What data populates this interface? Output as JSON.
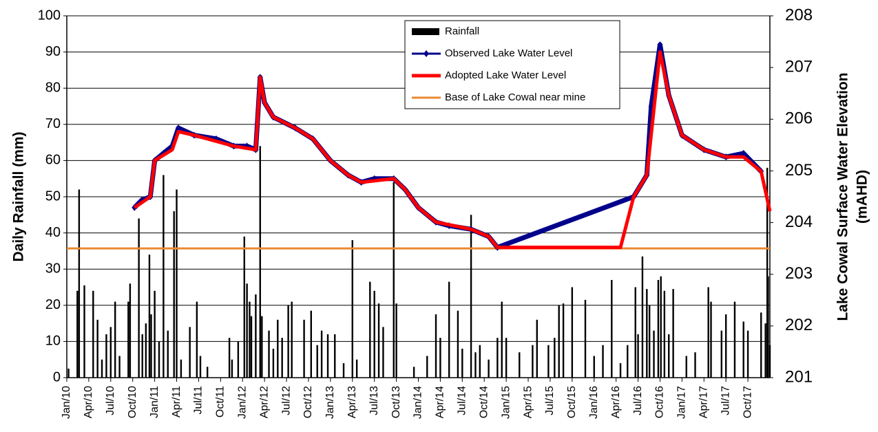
{
  "chart_data": {
    "type": "bar_line",
    "y_label": "Daily Rainfall (mm)",
    "y2_label": [
      "Lake Cowal Surface Water Elevation",
      "(mAHD)"
    ],
    "xlim": [
      2010,
      2018
    ],
    "xticks": [
      {
        "value": 2010,
        "label": "Jan/10"
      },
      {
        "value": 2010.25,
        "label": "Apr/10"
      },
      {
        "value": 2010.5,
        "label": "Jul/10"
      },
      {
        "value": 2010.75,
        "label": "Oct/10"
      },
      {
        "value": 2011,
        "label": "Jan/11"
      },
      {
        "value": 2011.25,
        "label": "Apr/11"
      },
      {
        "value": 2011.5,
        "label": "Jul/11"
      },
      {
        "value": 2011.75,
        "label": "Oct/11"
      },
      {
        "value": 2012,
        "label": "Jan/12"
      },
      {
        "value": 2012.25,
        "label": "Apr/12"
      },
      {
        "value": 2012.5,
        "label": "Jul/12"
      },
      {
        "value": 2012.75,
        "label": "Oct/12"
      },
      {
        "value": 2013,
        "label": "Jan/13"
      },
      {
        "value": 2013.25,
        "label": "Apr/13"
      },
      {
        "value": 2013.5,
        "label": "Jul/13"
      },
      {
        "value": 2013.75,
        "label": "Oct/13"
      },
      {
        "value": 2014,
        "label": "Jan/14"
      },
      {
        "value": 2014.25,
        "label": "Apr/14"
      },
      {
        "value": 2014.5,
        "label": "Jul/14"
      },
      {
        "value": 2014.75,
        "label": "Oct/14"
      },
      {
        "value": 2015,
        "label": "Jan/15"
      },
      {
        "value": 2015.25,
        "label": "Apr/15"
      },
      {
        "value": 2015.5,
        "label": "Jul/15"
      },
      {
        "value": 2015.75,
        "label": "Oct/15"
      },
      {
        "value": 2016,
        "label": "Jan/16"
      },
      {
        "value": 2016.25,
        "label": "Apr/16"
      },
      {
        "value": 2016.5,
        "label": "Jul/16"
      },
      {
        "value": 2016.75,
        "label": "Oct/16"
      },
      {
        "value": 2017,
        "label": "Jan/17"
      },
      {
        "value": 2017.25,
        "label": "Apr/17"
      },
      {
        "value": 2017.5,
        "label": "Jul/17"
      },
      {
        "value": 2017.75,
        "label": "Oct/17"
      }
    ],
    "ylim": [
      0,
      100
    ],
    "yticks": [
      0,
      10,
      20,
      30,
      40,
      50,
      60,
      70,
      80,
      90,
      100
    ],
    "y2lim": [
      201,
      208
    ],
    "y2ticks": [
      201,
      202,
      203,
      204,
      205,
      206,
      207,
      208
    ],
    "grid": true,
    "legend": "top-center",
    "series": [
      {
        "name": "Rainfall",
        "type": "bar",
        "color": "#000000",
        "x": [
          2010.02,
          2010.12,
          2010.14,
          2010.2,
          2010.3,
          2010.35,
          2010.4,
          2010.45,
          2010.5,
          2010.55,
          2010.6,
          2010.7,
          2010.72,
          2010.82,
          2010.86,
          2010.9,
          2010.94,
          2010.96,
          2011.0,
          2011.05,
          2011.1,
          2011.15,
          2011.22,
          2011.25,
          2011.3,
          2011.4,
          2011.48,
          2011.52,
          2011.6,
          2011.85,
          2011.88,
          2011.95,
          2012.02,
          2012.05,
          2012.08,
          2012.1,
          2012.15,
          2012.2,
          2012.22,
          2012.3,
          2012.35,
          2012.4,
          2012.45,
          2012.52,
          2012.56,
          2012.7,
          2012.78,
          2012.85,
          2012.9,
          2012.97,
          2013.05,
          2013.15,
          2013.25,
          2013.3,
          2013.45,
          2013.5,
          2013.55,
          2013.6,
          2013.72,
          2013.75,
          2013.95,
          2014.1,
          2014.2,
          2014.25,
          2014.35,
          2014.45,
          2014.5,
          2014.6,
          2014.65,
          2014.7,
          2014.8,
          2014.9,
          2014.95,
          2015.0,
          2015.15,
          2015.3,
          2015.35,
          2015.48,
          2015.55,
          2015.6,
          2015.65,
          2015.75,
          2015.9,
          2016.0,
          2016.1,
          2016.2,
          2016.3,
          2016.38,
          2016.47,
          2016.5,
          2016.55,
          2016.6,
          2016.63,
          2016.68,
          2016.73,
          2016.76,
          2016.8,
          2016.85,
          2016.9,
          2017.05,
          2017.15,
          2017.3,
          2017.33,
          2017.45,
          2017.5,
          2017.6,
          2017.7,
          2017.75,
          2017.9,
          2017.95,
          2017.97,
          2017.98,
          2018.0
        ],
        "values": [
          2.5,
          24,
          52,
          25.5,
          24,
          16,
          5,
          12,
          14,
          21,
          6,
          21,
          26,
          44,
          12,
          15,
          34,
          17.5,
          24,
          10,
          56,
          13,
          46,
          52,
          5,
          14,
          21,
          6,
          3,
          11,
          5,
          10,
          39,
          26,
          21,
          17,
          23,
          64,
          17,
          13,
          8,
          16,
          11,
          20,
          21,
          16,
          18.5,
          9,
          13,
          12,
          12,
          4,
          38,
          5,
          26.5,
          24,
          20.5,
          14,
          54,
          20.5,
          3,
          6,
          17.5,
          11,
          26.5,
          18.5,
          8,
          45,
          7,
          9,
          5,
          11,
          21,
          11,
          7,
          9,
          16,
          9,
          11,
          20,
          20.5,
          25,
          21.5,
          6,
          9,
          27,
          4,
          9,
          25,
          12,
          33.5,
          24.5,
          20,
          13,
          27,
          28,
          24,
          12,
          24.5,
          6,
          7,
          25,
          21,
          13,
          17.5,
          21,
          15.5,
          13,
          18,
          15,
          58,
          28,
          9
        ]
      },
      {
        "name": "Observed Lake Water Level",
        "type": "line",
        "axis": "y2",
        "color": "#00008b",
        "x": [
          2010.77,
          2010.85,
          2010.95,
          2011.0,
          2011.1,
          2011.2,
          2011.27,
          2011.45,
          2011.7,
          2011.9,
          2012.05,
          2012.15,
          2012.2,
          2012.25,
          2012.35,
          2012.6,
          2012.8,
          2013.0,
          2013.2,
          2013.35,
          2013.5,
          2013.72,
          2013.85,
          2014.0,
          2014.2,
          2014.35,
          2014.6,
          2014.8,
          2014.9,
          2016.45,
          2016.6,
          2016.65,
          2016.75,
          2016.85,
          2017.0,
          2017.25,
          2017.5,
          2017.7,
          2017.9
        ],
        "values": [
          204.29,
          204.43,
          204.5,
          205.2,
          205.34,
          205.48,
          205.83,
          205.69,
          205.62,
          205.48,
          205.48,
          205.41,
          206.81,
          206.32,
          206.04,
          205.83,
          205.62,
          205.2,
          204.92,
          204.78,
          204.85,
          204.85,
          204.64,
          204.29,
          204.01,
          203.94,
          203.87,
          203.73,
          203.52,
          204.5,
          204.92,
          206.25,
          207.44,
          206.46,
          205.69,
          205.41,
          205.27,
          205.34,
          204.99
        ]
      },
      {
        "name": "Adopted Lake Water Level",
        "type": "line",
        "axis": "y2",
        "color": "#ff0000",
        "x": [
          2010.77,
          2010.95,
          2011.0,
          2011.2,
          2011.27,
          2011.45,
          2011.9,
          2012.15,
          2012.2,
          2012.25,
          2012.35,
          2012.6,
          2012.8,
          2013.0,
          2013.2,
          2013.35,
          2013.72,
          2013.85,
          2014.0,
          2014.2,
          2014.6,
          2014.8,
          2014.9,
          2016.3,
          2016.45,
          2016.6,
          2016.75,
          2016.85,
          2017.0,
          2017.25,
          2017.5,
          2017.7,
          2017.9,
          2018.0
        ],
        "values": [
          204.29,
          204.5,
          205.2,
          205.41,
          205.76,
          205.69,
          205.48,
          205.41,
          206.81,
          206.32,
          206.04,
          205.83,
          205.62,
          205.2,
          204.92,
          204.78,
          204.85,
          204.64,
          204.29,
          204.01,
          203.87,
          203.73,
          203.52,
          203.52,
          204.5,
          204.92,
          207.3,
          206.46,
          205.69,
          205.41,
          205.27,
          205.27,
          204.99,
          204.22
        ]
      },
      {
        "name": "Base of Lake Cowal near mine",
        "type": "line",
        "axis": "y2",
        "color": "#e8892f",
        "x": [
          2010,
          2018
        ],
        "values": [
          203.5,
          203.5
        ]
      }
    ]
  }
}
